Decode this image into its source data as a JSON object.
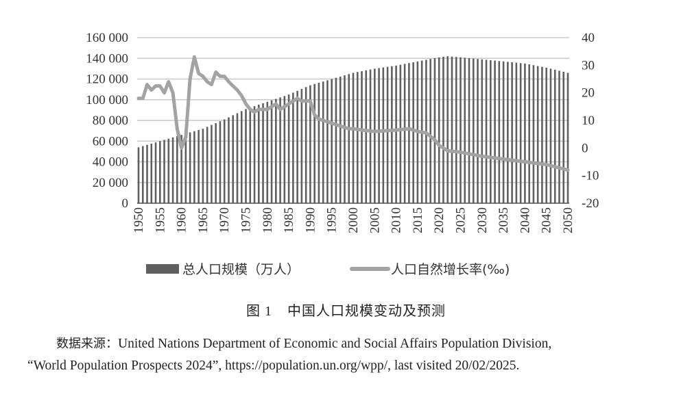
{
  "chart_data": {
    "type": "bar+line",
    "x_tick_labels": [
      "1950",
      "1955",
      "1960",
      "1965",
      "1970",
      "1975",
      "1980",
      "1985",
      "1990",
      "1995",
      "2000",
      "2005",
      "2010",
      "2015",
      "2020",
      "2025",
      "2030",
      "2035",
      "2040",
      "2045",
      "2050"
    ],
    "y_left_ticks": [
      "160 000",
      "140 000",
      "120 000",
      "100 000",
      "80 000",
      "60 000",
      "40 000",
      "20 000",
      "0"
    ],
    "y_left_lim": [
      0,
      160000
    ],
    "y_right_ticks": [
      "40",
      "30",
      "20",
      "10",
      "0",
      "-10",
      "-20"
    ],
    "y_right_lim": [
      -20,
      40
    ],
    "grid": "horizontal",
    "legend_position": "bottom",
    "colors": {
      "bars": "#5f5f5f",
      "line": "#a3a3a3",
      "grid": "#c8c8c8"
    },
    "series": [
      {
        "name": "总人口规模（万人）",
        "type": "bar",
        "axis": "left",
        "x": [
          1950,
          2050
        ],
        "anchors": [
          [
            1950,
            54000
          ],
          [
            1955,
            60000
          ],
          [
            1960,
            66000
          ],
          [
            1965,
            72000
          ],
          [
            1970,
            81000
          ],
          [
            1975,
            91000
          ],
          [
            1980,
            98000
          ],
          [
            1985,
            105000
          ],
          [
            1990,
            114000
          ],
          [
            1995,
            120000
          ],
          [
            2000,
            126000
          ],
          [
            2005,
            130000
          ],
          [
            2010,
            133000
          ],
          [
            2015,
            137000
          ],
          [
            2020,
            141000
          ],
          [
            2022,
            142000
          ],
          [
            2025,
            141000
          ],
          [
            2030,
            139000
          ],
          [
            2035,
            137000
          ],
          [
            2040,
            135000
          ],
          [
            2045,
            131000
          ],
          [
            2050,
            126000
          ]
        ]
      },
      {
        "name": "人口自然增长率(‰)",
        "type": "line",
        "axis": "right",
        "points": [
          [
            1950,
            18
          ],
          [
            1951,
            18
          ],
          [
            1952,
            23
          ],
          [
            1953,
            21
          ],
          [
            1954,
            22.5
          ],
          [
            1955,
            22.5
          ],
          [
            1956,
            20
          ],
          [
            1957,
            24
          ],
          [
            1958,
            20
          ],
          [
            1959,
            7
          ],
          [
            1960,
            0
          ],
          [
            1961,
            4
          ],
          [
            1962,
            25
          ],
          [
            1963,
            33
          ],
          [
            1964,
            27
          ],
          [
            1965,
            26
          ],
          [
            1966,
            24
          ],
          [
            1967,
            23
          ],
          [
            1968,
            27.5
          ],
          [
            1969,
            26
          ],
          [
            1970,
            26
          ],
          [
            1971,
            24
          ],
          [
            1972,
            22.5
          ],
          [
            1973,
            21
          ],
          [
            1974,
            19
          ],
          [
            1975,
            16
          ],
          [
            1976,
            14
          ],
          [
            1977,
            13
          ],
          [
            1978,
            14
          ],
          [
            1979,
            14
          ],
          [
            1980,
            14
          ],
          [
            1981,
            15
          ],
          [
            1982,
            16
          ],
          [
            1983,
            14
          ],
          [
            1984,
            15
          ],
          [
            1985,
            16
          ],
          [
            1986,
            17
          ],
          [
            1987,
            18
          ],
          [
            1988,
            17
          ],
          [
            1989,
            17
          ],
          [
            1990,
            17
          ],
          [
            1991,
            12
          ],
          [
            1992,
            10.5
          ],
          [
            1993,
            10
          ],
          [
            1994,
            9.5
          ],
          [
            1995,
            9
          ],
          [
            1996,
            8.5
          ],
          [
            1997,
            8
          ],
          [
            1998,
            7.5
          ],
          [
            1999,
            7
          ],
          [
            2000,
            7
          ],
          [
            2002,
            6.5
          ],
          [
            2005,
            6
          ],
          [
            2010,
            6.5
          ],
          [
            2013,
            7
          ],
          [
            2015,
            6
          ],
          [
            2017,
            5.5
          ],
          [
            2019,
            3
          ],
          [
            2020,
            1
          ],
          [
            2022,
            -1
          ],
          [
            2025,
            -1.5
          ],
          [
            2030,
            -3
          ],
          [
            2035,
            -4
          ],
          [
            2040,
            -5
          ],
          [
            2045,
            -6
          ],
          [
            2050,
            -8
          ]
        ]
      }
    ]
  },
  "legend": {
    "bar_label": "总人口规模（万人）",
    "line_label": "人口自然增长率(‰)"
  },
  "caption": {
    "number": "图 1",
    "title": "中国人口规模变动及预测"
  },
  "source": {
    "label": "数据来源：",
    "line1": "United Nations Department of Economic and Social Affairs Population Division,",
    "line2": "“World Population Prospects 2024”, https://population.un.org/wpp/, last visited 20/02/2025."
  }
}
